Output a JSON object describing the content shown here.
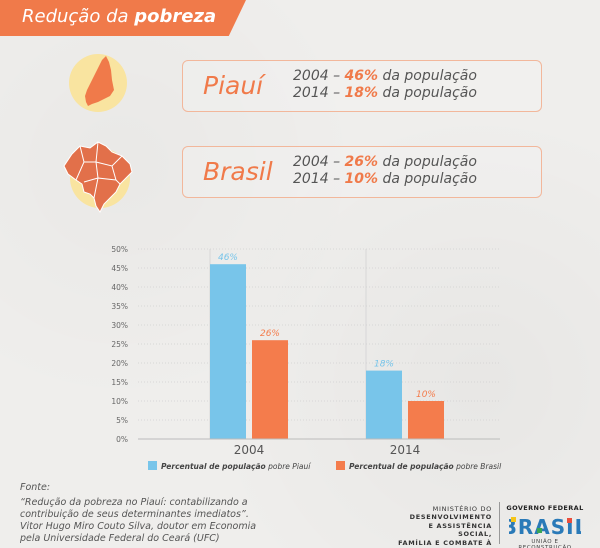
{
  "header": {
    "title_prefix": "Redução da ",
    "title_bold": "pobreza"
  },
  "cards": [
    {
      "name": "Piauí",
      "line1_year": "2004 – ",
      "line1_pct": "46%",
      "line1_rest": " da população",
      "line2_year": "2014 – ",
      "line2_pct": "18%",
      "line2_rest": " da população"
    },
    {
      "name": "Brasil",
      "line1_year": "2004 – ",
      "line1_pct": "26%",
      "line1_rest": " da população",
      "line2_year": "2014 – ",
      "line2_pct": "10%",
      "line2_rest": " da população"
    }
  ],
  "icons": {
    "piaui": "piaui-map-icon",
    "brasil": "brazil-map-icon"
  },
  "colors": {
    "accent": "#f07a4a",
    "piaui": "#78c5ea",
    "brasil": "#f47c4c",
    "map_circle": "#f9e4a0"
  },
  "chart_data": {
    "type": "bar",
    "categories": [
      "2004",
      "2014"
    ],
    "series": [
      {
        "name": "pobre Piauí",
        "legend_bold": "Percentual de população",
        "legend_rest": " pobre Piauí",
        "values": [
          46,
          18
        ],
        "labels": [
          "46%",
          "18%"
        ],
        "color": "#78c5ea"
      },
      {
        "name": "pobre Brasil",
        "legend_bold": "Percentual de população",
        "legend_rest": " pobre Brasil",
        "values": [
          26,
          10
        ],
        "labels": [
          "26%",
          "10%"
        ],
        "color": "#f47c4c"
      }
    ],
    "ylim": [
      0,
      50
    ],
    "yticks": [
      "0%",
      "5%",
      "10%",
      "15%",
      "20%",
      "25%",
      "30%",
      "35%",
      "40%",
      "45%",
      "50%"
    ],
    "ytick_values": [
      0,
      5,
      10,
      15,
      20,
      25,
      30,
      35,
      40,
      45,
      50
    ],
    "grid": true,
    "legend_position": "bottom"
  },
  "source": {
    "label": "Fonte:",
    "lines": [
      "“Redução da pobreza no Piauí: contabilizando a",
      "contribuição de seus determinantes imediatos”.",
      "Vitor Hugo Miro Couto Silva, doutor em Economia",
      "pela Universidade Federal do Ceará (UFC)"
    ]
  },
  "footer": {
    "ministry_lines": [
      "MINISTÉRIO DO",
      "DESENVOLVIMENTO",
      "E ASSISTÊNCIA SOCIAL,",
      "FAMÍLIA E COMBATE À FOME"
    ],
    "gov_title": "GOVERNO FEDERAL",
    "gov_logo": "BRASIL",
    "gov_slogan": "UNIÃO E RECONSTRUÇÃO"
  }
}
